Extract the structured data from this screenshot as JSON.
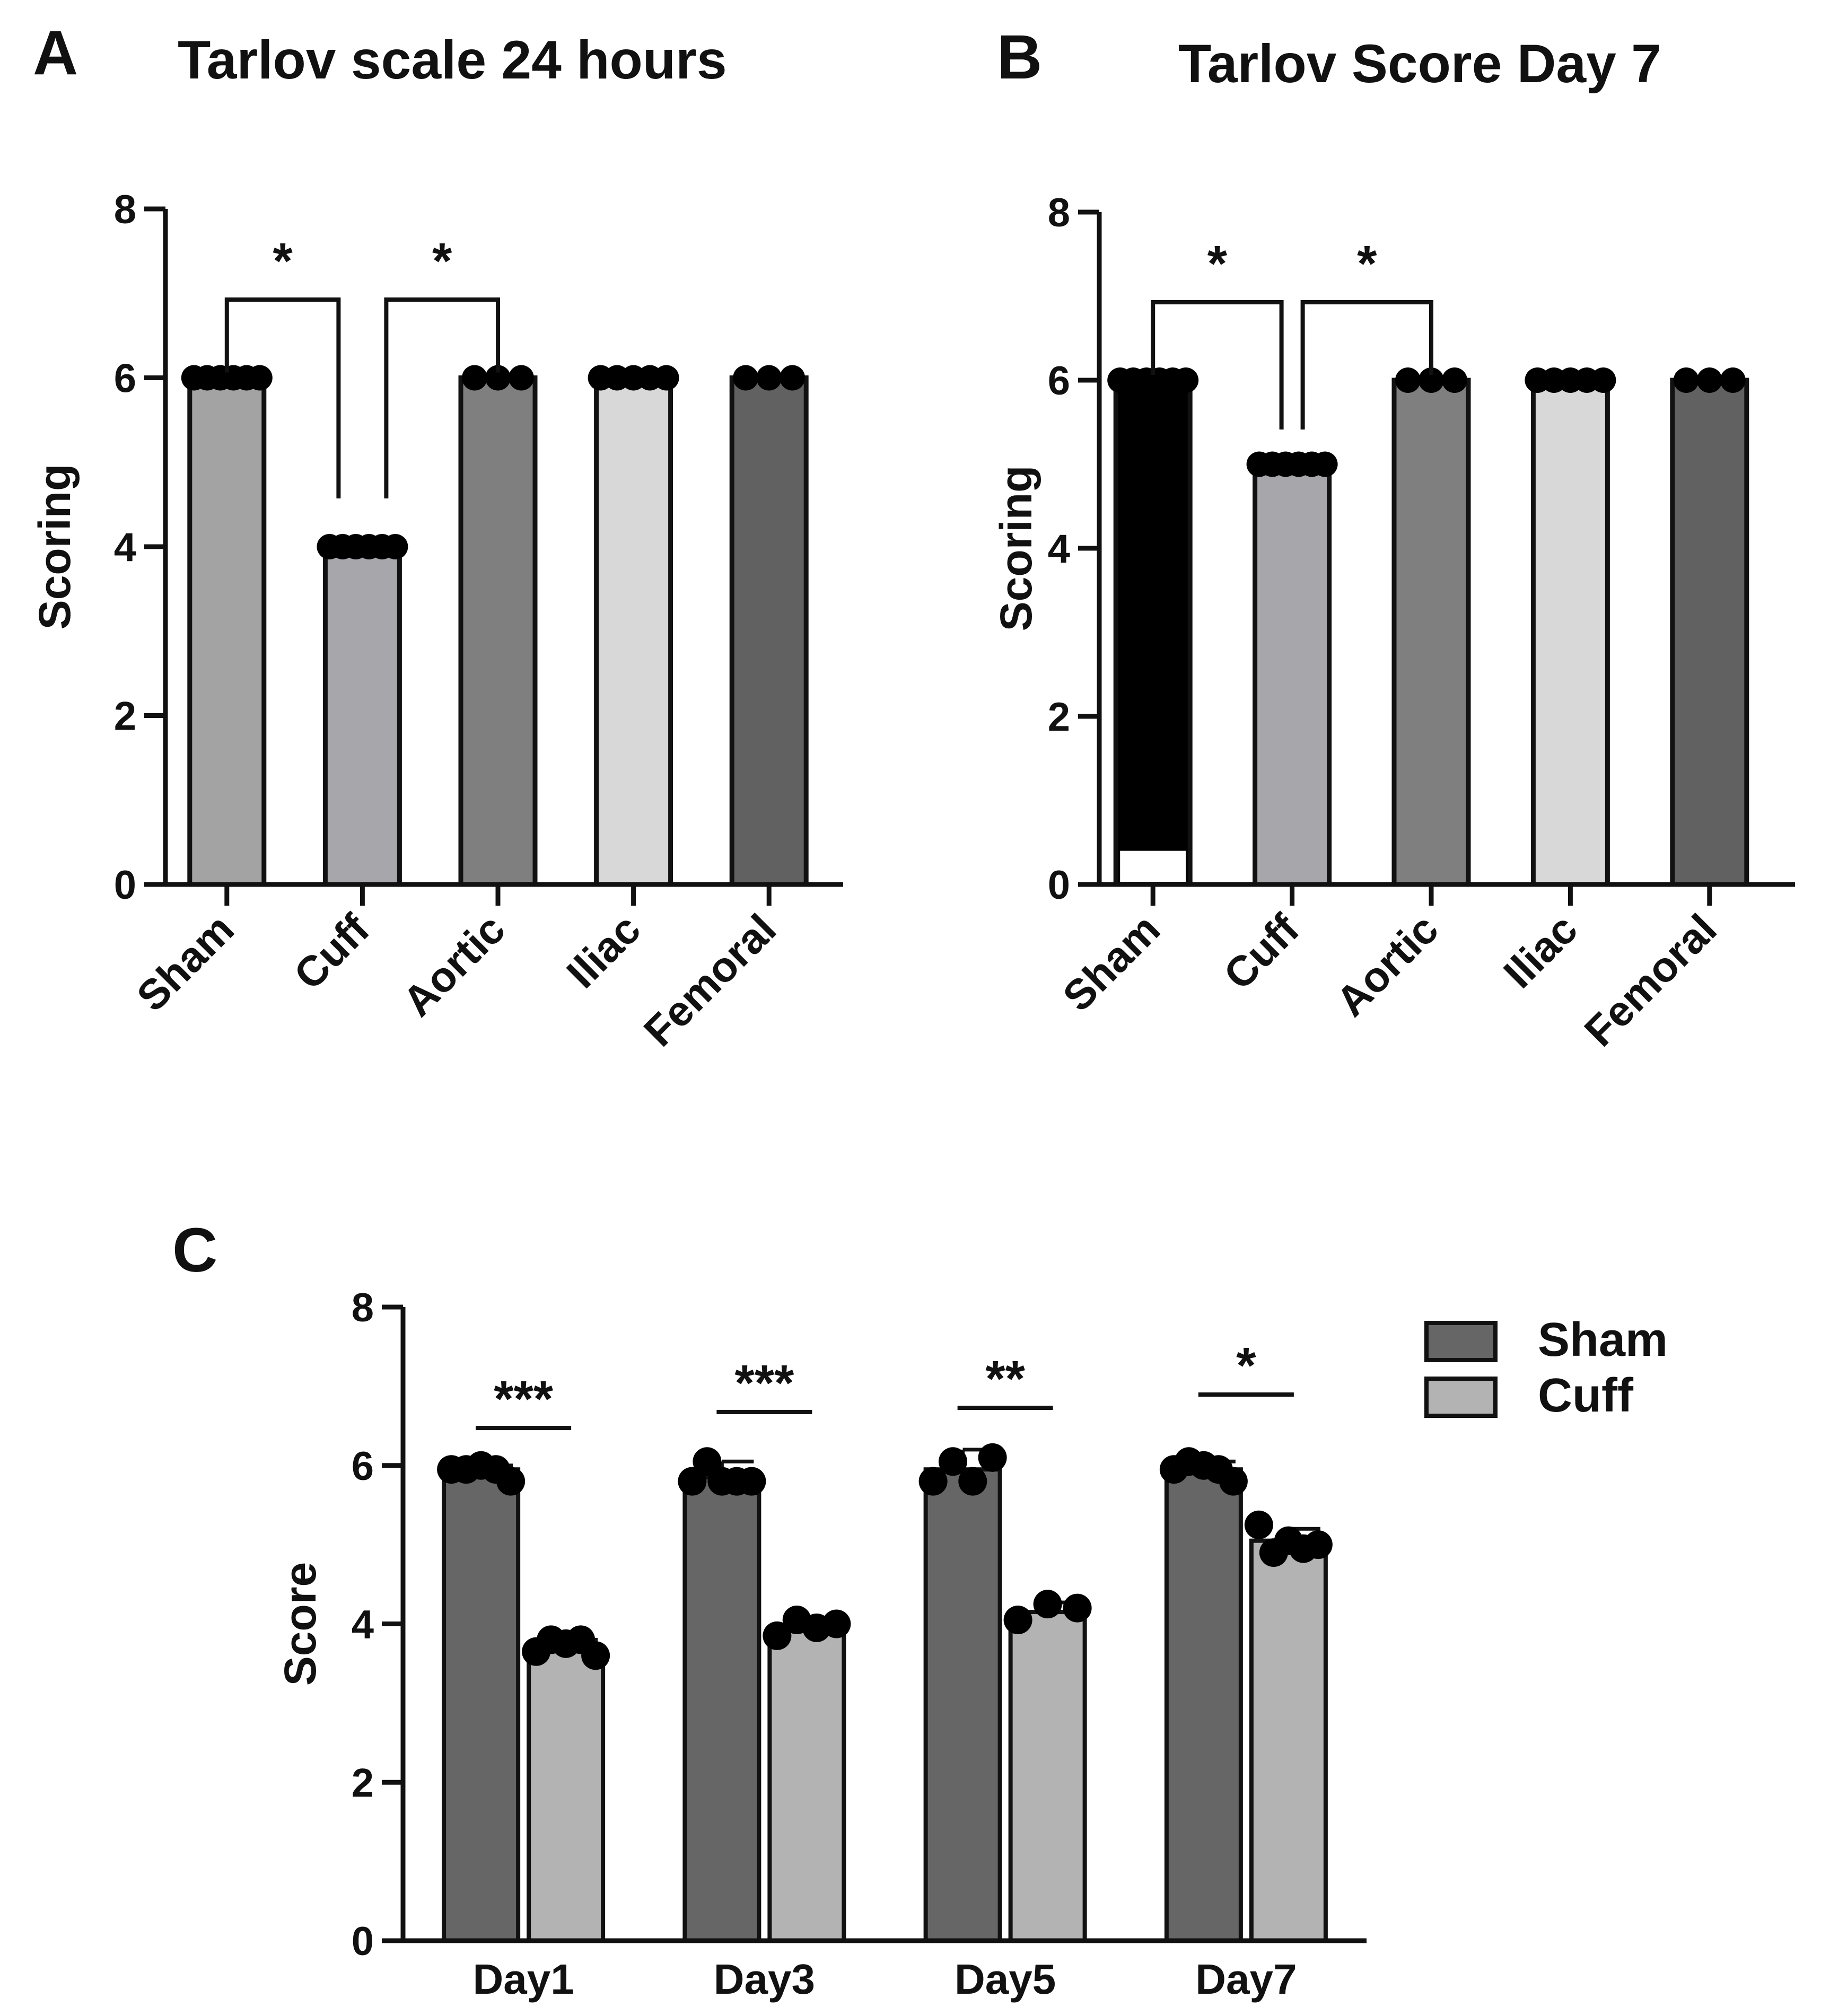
{
  "panels": {
    "A": {
      "letter": "A",
      "title": "Tarlov scale 24 hours"
    },
    "B": {
      "letter": "B",
      "title": "Tarlov Score Day 7"
    },
    "C": {
      "letter": "C",
      "title": ""
    }
  },
  "chart_data": [
    {
      "id": "A",
      "type": "bar",
      "title": "Tarlov scale 24 hours",
      "xlabel": "",
      "ylabel": "Scoring",
      "ylim": [
        0,
        8
      ],
      "yticks": [
        "0",
        "2",
        "4",
        "6",
        "8"
      ],
      "categories": [
        "Sham",
        "Cuff",
        "Aortic",
        "Iliac",
        "Femoral"
      ],
      "values": [
        6,
        4,
        6,
        6,
        6
      ],
      "colors": [
        "#a3a3a3",
        "#a6a6ab",
        "#7f7f7f",
        "#d8d8d8",
        "#616161"
      ],
      "points": [
        [
          6,
          6,
          6,
          6,
          6,
          6
        ],
        [
          4,
          4,
          4,
          4,
          4,
          4
        ],
        [
          6,
          6,
          6
        ],
        [
          6,
          6,
          6,
          6,
          6
        ],
        [
          6,
          6,
          6
        ]
      ],
      "significance": [
        {
          "from": "Sham",
          "to": "Cuff",
          "label": "*"
        },
        {
          "from": "Cuff",
          "to": "Aortic",
          "label": "*"
        }
      ]
    },
    {
      "id": "B",
      "type": "bar",
      "title": "Tarlov Score Day 7",
      "xlabel": "",
      "ylabel": "Scoring",
      "ylim": [
        0,
        8
      ],
      "yticks": [
        "0",
        "2",
        "4",
        "6",
        "8"
      ],
      "categories": [
        "Sham",
        "Cuff",
        "Aortic",
        "Iliac",
        "Femoral"
      ],
      "values": [
        6,
        5,
        6,
        6,
        6
      ],
      "colors": [
        "#000000",
        "#a6a6ab",
        "#7f7f7f",
        "#d8d8d8",
        "#616161"
      ],
      "points": [
        [
          6,
          6,
          6,
          6,
          6,
          6
        ],
        [
          5,
          5,
          5,
          5,
          5,
          5
        ],
        [
          6,
          6,
          6
        ],
        [
          6,
          6,
          6,
          6,
          6
        ],
        [
          6,
          6,
          6
        ]
      ],
      "significance": [
        {
          "from": "Sham",
          "to": "Cuff",
          "label": "*"
        },
        {
          "from": "Cuff",
          "to": "Aortic",
          "label": "*"
        }
      ]
    },
    {
      "id": "C",
      "type": "bar",
      "title": "",
      "xlabel": "",
      "ylabel": "Score",
      "ylim": [
        0,
        8
      ],
      "yticks": [
        "0",
        "2",
        "4",
        "6",
        "8"
      ],
      "categories": [
        "Day1",
        "Day3",
        "Day5",
        "Day7"
      ],
      "series": [
        {
          "name": "Sham",
          "color": "#666666",
          "values": [
            5.95,
            5.85,
            5.95,
            5.95
          ],
          "errors": [
            0.05,
            0.2,
            0.25,
            0.1
          ],
          "points": [
            [
              5.95,
              5.95,
              6.0,
              5.95,
              5.8
            ],
            [
              5.8,
              6.05,
              5.8,
              5.8,
              5.8
            ],
            [
              5.8,
              6.05,
              5.8,
              6.1
            ],
            [
              5.95,
              6.05,
              6.0,
              5.95,
              5.8
            ]
          ]
        },
        {
          "name": "Cuff",
          "color": "#b3b3b3",
          "values": [
            3.7,
            3.95,
            4.15,
            5.05
          ],
          "errors": [
            0.1,
            0.1,
            0.12,
            0.15
          ],
          "points": [
            [
              3.65,
              3.8,
              3.75,
              3.8,
              3.6
            ],
            [
              3.85,
              4.05,
              3.95,
              4.0
            ],
            [
              4.05,
              4.25,
              4.2
            ],
            [
              5.25,
              4.9,
              5.05,
              4.95,
              5.0
            ]
          ]
        }
      ],
      "significance": [
        "***",
        "***",
        "**",
        "*"
      ],
      "legend_position": "top-right"
    }
  ]
}
